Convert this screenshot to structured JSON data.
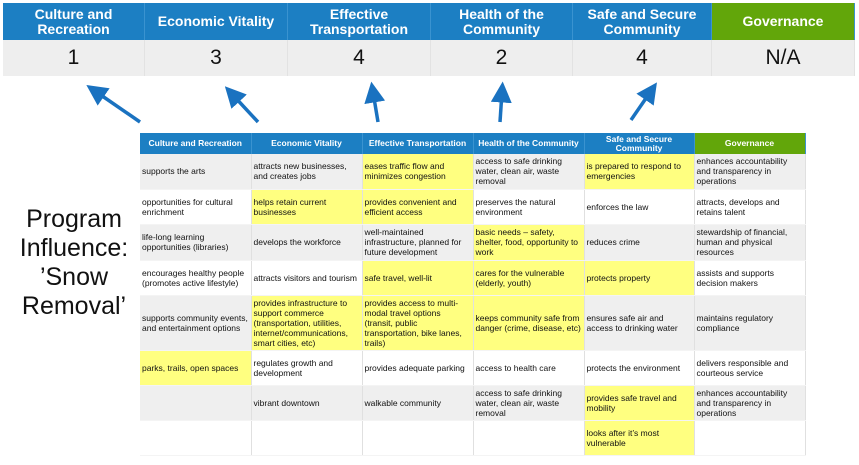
{
  "scores": [
    {
      "label": "Culture and Recreation",
      "value": "1"
    },
    {
      "label": "Economic Vitality",
      "value": "3"
    },
    {
      "label": "Effective Transportation",
      "value": "4"
    },
    {
      "label": "Health of the Community",
      "value": "2"
    },
    {
      "label": "Safe and Secure Community",
      "value": "4"
    },
    {
      "label": "Governance",
      "value": "N/A"
    }
  ],
  "side_title": "Program Influence: ’Snow Removal’",
  "colors": {
    "blue": "#1c7fc3",
    "green": "#62a60a",
    "highlight": "#ffff80",
    "arrow": "#1a72c0"
  },
  "table": {
    "headers": [
      "Culture and Recreation",
      "Economic Vitality",
      "Effective Transportation",
      "Health of the Community",
      "Safe and Secure Community",
      "Governance"
    ],
    "rows": [
      [
        "supports the arts",
        "attracts new businesses, and creates jobs",
        "eases traffic flow and minimizes congestion",
        "access to safe drinking water, clean air, waste removal",
        "is prepared to respond to emergencies",
        "enhances accountability and transparency in operations"
      ],
      [
        "opportunities for cultural enrichment",
        "helps retain current businesses",
        "provides convenient and efficient access",
        "preserves the natural environment",
        "enforces the law",
        "attracts, develops and retains talent"
      ],
      [
        "life-long learning opportunities (libraries)",
        "develops the workforce",
        "well-maintained infrastructure, planned for future development",
        "basic needs – safety, shelter, food, opportunity to work",
        "reduces crime",
        "stewardship of financial, human and physical resources"
      ],
      [
        "encourages healthy people (promotes active lifestyle)",
        "attracts visitors and tourism",
        "safe travel, well-lit",
        "cares for the vulnerable (elderly, youth)",
        "protects property",
        "assists and supports decision makers"
      ],
      [
        "supports community events, and entertainment options",
        "provides infrastructure to support commerce (transportation, utilities, internet/communications, smart cities, etc)",
        "provides access to multi-modal travel options (transit, public transportation, bike lanes, trails)",
        "keeps community safe from danger (crime, disease, etc)",
        "ensures safe air and access to drinking water",
        "maintains regulatory compliance"
      ],
      [
        "parks, trails, open spaces",
        "regulates growth and development",
        "provides adequate parking",
        "access to health care",
        "protects the environment",
        "delivers responsible and courteous service"
      ],
      [
        "",
        "vibrant downtown",
        "walkable community",
        "access to safe drinking water, clean air, waste removal",
        "provides safe travel and mobility",
        "enhances accountability and transparency in operations"
      ],
      [
        "",
        "",
        "",
        "",
        "looks after it’s most vulnerable",
        ""
      ]
    ],
    "highlighted": [
      [
        2,
        4
      ],
      [
        1,
        2
      ],
      [
        3
      ],
      [
        2,
        3,
        4
      ],
      [
        1,
        2,
        3
      ],
      [
        0
      ],
      [
        4
      ],
      [
        4
      ]
    ]
  }
}
